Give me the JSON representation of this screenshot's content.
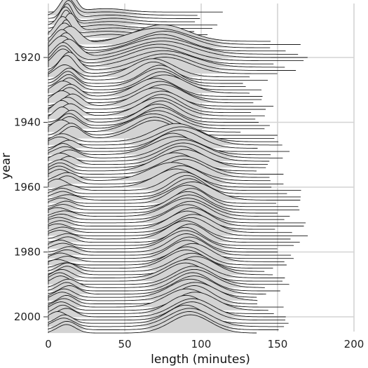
{
  "chart_data": {
    "type": "ridgeline",
    "title": "",
    "xlabel": "length (minutes)",
    "ylabel": "year",
    "xlim": [
      0,
      200
    ],
    "ylim": [
      1905,
      2005
    ],
    "x_ticks": [
      0,
      50,
      100,
      150,
      200
    ],
    "y_ticks": [
      1920,
      1940,
      1960,
      1980,
      2000
    ],
    "grid": "major, light gray",
    "fill_color": "#d3d3d3",
    "line_color": "#1a1a1a",
    "distributions": [
      {
        "years": [
          1906,
          1914
        ],
        "peaks": [
          {
            "mode": 11,
            "sd": 4,
            "weight": 1.0
          },
          {
            "mode": 40,
            "sd": 14,
            "weight": 0.2
          }
        ],
        "extent": [
          0,
          110
        ]
      },
      {
        "years": [
          1915,
          1925
        ],
        "peaks": [
          {
            "mode": 12,
            "sd": 6,
            "weight": 0.55
          },
          {
            "mode": 75,
            "sd": 18,
            "weight": 0.5
          }
        ],
        "extent": [
          0,
          160
        ]
      },
      {
        "years": [
          1926,
          1945
        ],
        "peaks": [
          {
            "mode": 12,
            "sd": 6,
            "weight": 0.5
          },
          {
            "mode": 72,
            "sd": 13,
            "weight": 0.75
          }
        ],
        "extent": [
          0,
          140
        ]
      },
      {
        "years": [
          1946,
          1960
        ],
        "peaks": [
          {
            "mode": 10,
            "sd": 6,
            "weight": 0.4
          },
          {
            "mode": 85,
            "sd": 14,
            "weight": 0.9
          }
        ],
        "extent": [
          0,
          150
        ]
      },
      {
        "years": [
          1961,
          1985
        ],
        "peaks": [
          {
            "mode": 10,
            "sd": 6,
            "weight": 0.3
          },
          {
            "mode": 92,
            "sd": 12,
            "weight": 1.0
          }
        ],
        "extent": [
          0,
          160
        ]
      },
      {
        "years": [
          1986,
          2005
        ],
        "peaks": [
          {
            "mode": 10,
            "sd": 6,
            "weight": 0.35
          },
          {
            "mode": 93,
            "sd": 13,
            "weight": 0.75
          }
        ],
        "extent": [
          0,
          150
        ]
      }
    ]
  }
}
